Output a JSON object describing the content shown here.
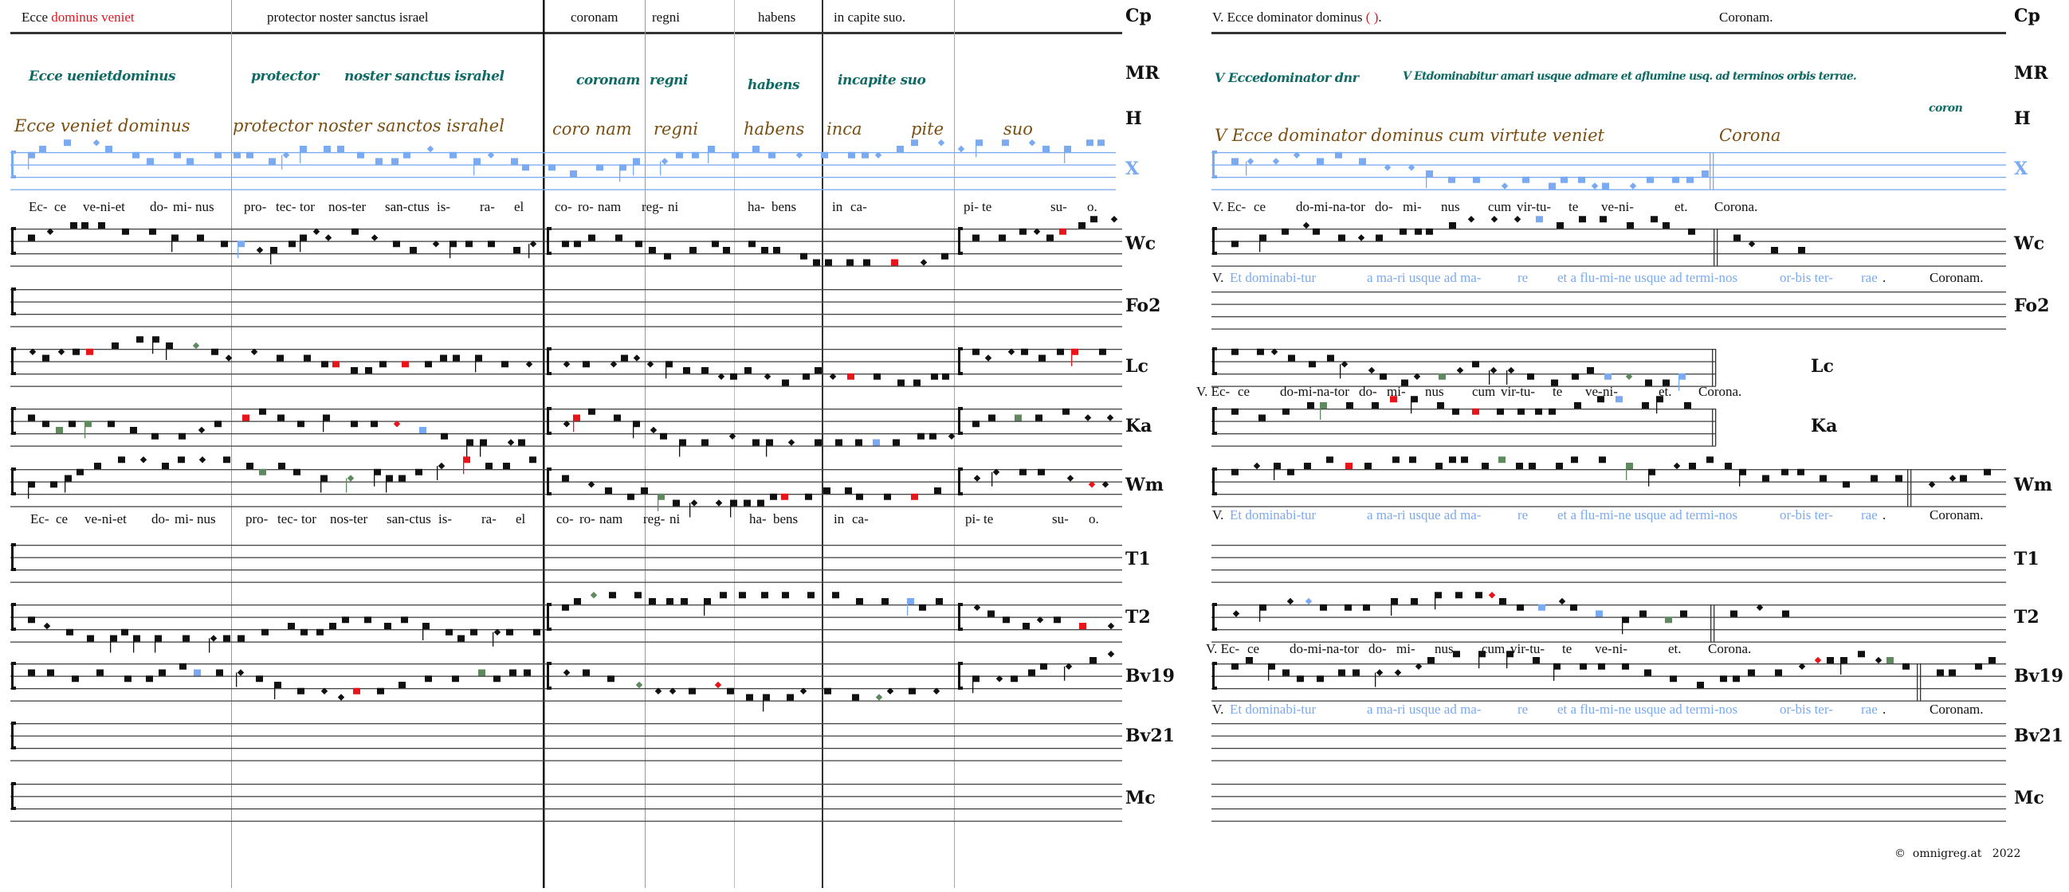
{
  "header": {
    "left_black": "Ecce",
    "left_red": "dominus veniet",
    "segments": [
      "protector noster sanctus israel",
      "coronam",
      "regni",
      "habens",
      "in capite suo."
    ],
    "right_title": "V. Ecce dominator dominus",
    "right_paren": "( )",
    "right_dot": ".",
    "right_coronam": "Coronam."
  },
  "labels": {
    "cp": "Cp",
    "mr": "MR",
    "h": "H",
    "x": "X",
    "wc": "Wc",
    "fo2": "Fo2",
    "lc": "Lc",
    "ka": "Ka",
    "wm": "Wm",
    "t1": "T1",
    "t2": "T2",
    "bv19": "Bv19",
    "bv21": "Bv21",
    "mc": "Mc"
  },
  "manuscript": {
    "mr_left": [
      "Ecce uenietdominus",
      "protector",
      "noster sanctus israhel",
      "coronam",
      "regni",
      "habens",
      "incapite suo"
    ],
    "h_left": [
      "Ecce veniet dominus",
      "protector noster sanctos israhel",
      "coro nam",
      "regni",
      "habens",
      "inca",
      "pite",
      "suo"
    ],
    "mr_right": [
      "V Eccedominator dnr",
      "V Etdominabitur amari usque admare et aflumine usq. ad terminos orbis terrae.",
      "coron"
    ],
    "h_right": [
      "V Ecce dominator dominus cum virtute veniet",
      "Corona"
    ]
  },
  "lyrics_left_1": [
    "Ec-",
    "ce",
    "ve-ni-et",
    "do-",
    "mi-",
    "nus",
    "pro-",
    "tec-",
    "tor",
    "nos-ter",
    "san-ctus",
    "is-",
    "ra-",
    "el",
    "co-",
    "ro-",
    "nam",
    "reg-",
    "ni",
    "ha-",
    "bens",
    "in",
    "ca-",
    "pi-",
    "te",
    "su-",
    "o."
  ],
  "lyrics_left_2": [
    "Ec-",
    "ce",
    "ve-ni-et",
    "do-",
    "mi-",
    "nus",
    "pro-",
    "tec-",
    "tor",
    "nos-ter",
    "san-ctus",
    "is-",
    "ra-",
    "el",
    "co-",
    "ro-",
    "nam",
    "reg-",
    "ni",
    "ha-",
    "bens",
    "in",
    "ca-",
    "pi-",
    "te",
    "su-",
    "o."
  ],
  "lyrics_right_v": [
    "V. Ec-",
    "ce",
    "do-mi-na-tor",
    "do-",
    "mi-",
    "nus",
    "cum",
    "vir-tu-",
    "te",
    "ve-",
    "ni-",
    "et.",
    "Corona."
  ],
  "lyrics_right_blue": {
    "v": "V.",
    "parts": [
      "Et dominabi-tur",
      "a ma-ri usque ad ma-",
      "re",
      "et a flu-mi-ne usque ad termi-nos",
      "or-bis ter-",
      "rae"
    ],
    "dot": ".",
    "coronam": "Coronam."
  },
  "footer": {
    "copyright": "©",
    "site": "omnigreg.at",
    "year": "2022"
  },
  "colors": {
    "red": "#e8141c",
    "blue": "#7aaaf2",
    "green": "#5f8a5f",
    "teal": "#0f6a66",
    "brown": "#7a4e10",
    "grey": "#8a8a8a"
  }
}
